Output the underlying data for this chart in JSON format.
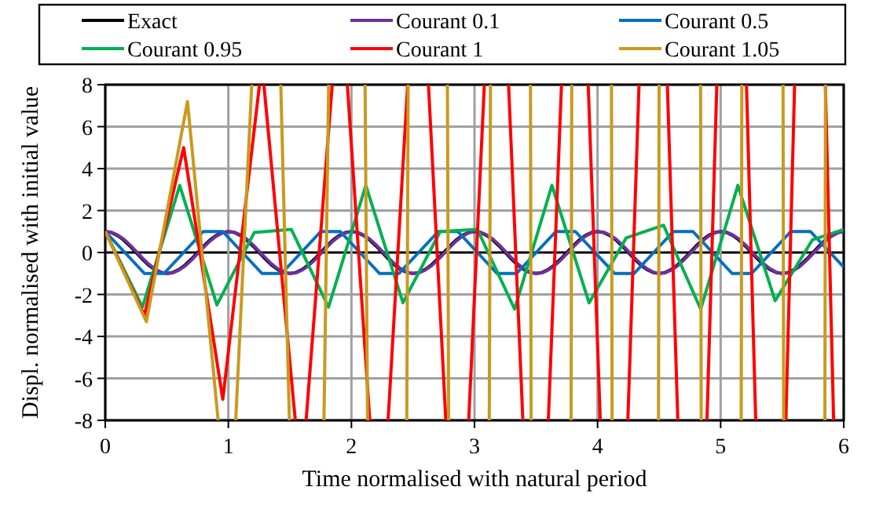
{
  "chart_data": {
    "type": "line",
    "xlabel": "Time normalised with natural period",
    "ylabel": "Displ. normalised with initial value",
    "xlim": [
      0,
      6
    ],
    "ylim": [
      -8,
      8
    ],
    "xticks": [
      0,
      1,
      2,
      3,
      4,
      5,
      6
    ],
    "yticks": [
      -8,
      -6,
      -4,
      -2,
      0,
      2,
      4,
      6,
      8
    ],
    "grid": true,
    "legend": "top",
    "x": [
      0,
      0.05,
      0.1,
      0.15,
      0.2,
      0.25,
      0.3,
      0.35,
      0.4,
      0.45,
      0.5,
      0.55,
      0.6,
      0.65,
      0.7,
      0.75,
      0.8,
      0.85,
      0.9,
      0.95,
      1,
      1.05,
      1.1,
      1.15,
      1.2,
      1.25,
      1.3,
      1.35,
      1.4,
      1.45,
      1.5,
      1.55,
      1.6,
      1.65,
      1.7,
      1.75,
      1.8,
      1.85,
      1.9,
      1.95,
      2,
      2.05,
      2.1,
      2.15,
      2.2,
      2.25,
      2.3,
      2.35,
      2.4,
      2.45,
      2.5,
      2.55,
      2.6,
      2.65,
      2.7,
      2.75,
      2.8,
      2.85,
      2.9,
      2.95,
      3,
      3.05,
      3.1,
      3.15,
      3.2,
      3.25,
      3.3,
      3.35,
      3.4,
      3.45,
      3.5,
      3.55,
      3.6,
      3.65,
      3.7,
      3.75,
      3.8,
      3.85,
      3.9,
      3.95,
      4,
      4.05,
      4.1,
      4.15,
      4.2,
      4.25,
      4.3,
      4.35,
      4.4,
      4.45,
      4.5,
      4.55,
      4.6,
      4.65,
      4.7,
      4.75,
      4.8,
      4.85,
      4.9,
      4.95,
      5,
      5.05,
      5.1,
      5.15,
      5.2,
      5.25,
      5.3,
      5.35,
      5.4,
      5.45,
      5.5,
      5.55,
      5.6,
      5.65,
      5.7,
      5.75,
      5.8,
      5.85,
      5.9,
      5.95,
      6
    ],
    "series": [
      {
        "name": "Exact",
        "color": "#000000",
        "values": [
          1,
          0.95,
          0.81,
          0.59,
          0.31,
          0,
          -0.31,
          -0.59,
          -0.81,
          -0.95,
          -1,
          -0.95,
          -0.81,
          -0.59,
          -0.31,
          0,
          0.31,
          0.59,
          0.81,
          0.95,
          1,
          0.95,
          0.81,
          0.59,
          0.31,
          0,
          -0.31,
          -0.59,
          -0.81,
          -0.95,
          -1,
          -0.95,
          -0.81,
          -0.59,
          -0.31,
          0,
          0.31,
          0.59,
          0.81,
          0.95,
          1,
          0.95,
          0.81,
          0.59,
          0.31,
          0,
          -0.31,
          -0.59,
          -0.81,
          -0.95,
          -1,
          -0.95,
          -0.81,
          -0.59,
          -0.31,
          0,
          0.31,
          0.59,
          0.81,
          0.95,
          1,
          0.95,
          0.81,
          0.59,
          0.31,
          0,
          -0.31,
          -0.59,
          -0.81,
          -0.95,
          -1,
          -0.95,
          -0.81,
          -0.59,
          -0.31,
          0,
          0.31,
          0.59,
          0.81,
          0.95,
          1,
          0.95,
          0.81,
          0.59,
          0.31,
          0,
          -0.31,
          -0.59,
          -0.81,
          -0.95,
          -1,
          -0.95,
          -0.81,
          -0.59,
          -0.31,
          0,
          0.31,
          0.59,
          0.81,
          0.95,
          1,
          0.95,
          0.81,
          0.59,
          0.31,
          0,
          -0.31,
          -0.59,
          -0.81,
          -0.95,
          -1,
          -0.95,
          -0.81,
          -0.59,
          -0.31,
          0,
          0.31,
          0.59,
          0.81,
          0.95,
          1
        ]
      },
      {
        "name": "Courant 0.1",
        "color": "#7030a0",
        "values": [
          1,
          0.97,
          0.84,
          0.64,
          0.37,
          0.06,
          -0.25,
          -0.54,
          -0.77,
          -0.93,
          -1,
          -0.97,
          -0.84,
          -0.64,
          -0.37,
          -0.06,
          0.25,
          0.54,
          0.77,
          0.93,
          1,
          0.97,
          0.84,
          0.64,
          0.37,
          0.06,
          -0.25,
          -0.54,
          -0.77,
          -0.93,
          -1,
          -0.97,
          -0.84,
          -0.64,
          -0.37,
          -0.06,
          0.25,
          0.54,
          0.77,
          0.93,
          1,
          0.97,
          0.84,
          0.64,
          0.37,
          0.06,
          -0.25,
          -0.54,
          -0.77,
          -0.93,
          -1,
          -0.97,
          -0.84,
          -0.64,
          -0.37,
          -0.06,
          0.25,
          0.54,
          0.77,
          0.93,
          1,
          0.97,
          0.84,
          0.64,
          0.37,
          0.06,
          -0.25,
          -0.54,
          -0.77,
          -0.93,
          -1,
          -0.97,
          -0.84,
          -0.64,
          -0.37,
          -0.06,
          0.25,
          0.54,
          0.77,
          0.93,
          1,
          0.97,
          0.84,
          0.64,
          0.37,
          0.06,
          -0.25,
          -0.54,
          -0.77,
          -0.93,
          -1,
          -0.97,
          -0.84,
          -0.64,
          -0.37,
          -0.06,
          0.25,
          0.54,
          0.77,
          0.93,
          1,
          0.97,
          0.84,
          0.64,
          0.37,
          0.06,
          -0.25,
          -0.54,
          -0.77,
          -0.93,
          -1,
          -0.97,
          -0.84,
          -0.64,
          -0.37,
          -0.06,
          0.25,
          0.54,
          0.77,
          0.93,
          1
        ]
      },
      {
        "name": "Courant 0.5",
        "color": "#0070c0",
        "x": [
          0,
          0.159,
          0.318,
          0.477,
          0.637,
          0.796,
          0.955,
          1.114,
          1.273,
          1.432,
          1.592,
          1.751,
          1.91,
          2.069,
          2.228,
          2.387,
          2.546,
          2.706,
          2.865,
          3.024,
          3.183,
          3.342,
          3.501,
          3.661,
          3.82,
          3.979,
          4.138,
          4.297,
          4.456,
          4.615,
          4.775,
          4.934,
          5.093,
          5.252,
          5.411,
          5.57,
          5.73,
          5.889,
          6
        ],
        "values": [
          1,
          0,
          -1,
          -1,
          0,
          1,
          1,
          0,
          -1,
          -1,
          0,
          1,
          1,
          0,
          -1,
          -1,
          0,
          1,
          1,
          0,
          -1,
          -1,
          0,
          1,
          1,
          0,
          -1,
          -1,
          0,
          1,
          1,
          0,
          -1,
          -1,
          0,
          1,
          1,
          0,
          -0.7
        ]
      },
      {
        "name": "Courant 0.95",
        "color": "#00b050",
        "x": [
          0,
          0.302,
          0.605,
          0.907,
          1.21,
          1.512,
          1.814,
          2.117,
          2.419,
          2.721,
          3.024,
          3.326,
          3.629,
          3.931,
          4.233,
          4.536,
          4.838,
          5.14,
          5.443,
          5.745,
          6
        ],
        "values": [
          1,
          -2.6,
          3.2,
          -2.5,
          0.95,
          1.1,
          -2.6,
          3.2,
          -2.4,
          1,
          1.1,
          -2.7,
          3.2,
          -2.4,
          0.7,
          1.3,
          -2.7,
          3.2,
          -2.3,
          0.6,
          1.1
        ]
      },
      {
        "name": "Courant 1",
        "color": "#ff0000",
        "x": [
          0,
          0.318,
          0.637,
          0.955,
          1.253,
          1.273,
          1.289,
          1.544,
          1.592,
          1.632,
          1.844,
          1.91,
          1.967,
          2.149,
          2.228,
          2.298,
          2.457,
          2.546,
          2.626,
          2.767,
          2.865,
          2.953,
          3.08,
          3.183,
          3.277,
          3.393,
          3.501,
          3.6,
          3.707,
          3.82,
          3.924,
          4.022,
          4.138,
          4.246,
          4.337,
          4.456,
          4.567,
          4.652,
          4.775,
          4.889,
          4.969,
          5.093,
          5.21,
          5.285,
          5.411,
          5.53,
          5.601,
          5.73,
          5.851,
          5.918
        ],
        "values": [
          1,
          -3,
          5,
          -7,
          8,
          null,
          8,
          -8,
          null,
          -8,
          8,
          null,
          8,
          -8,
          null,
          -8,
          8,
          null,
          8,
          -8,
          null,
          -8,
          8,
          null,
          8,
          -8,
          null,
          -8,
          8,
          null,
          8,
          -8,
          null,
          -8,
          8,
          null,
          8,
          -8,
          null,
          -8,
          8,
          null,
          8,
          -8,
          null,
          -8,
          8,
          null,
          8,
          -8
        ]
      },
      {
        "name": "Courant 1.05",
        "color": "#c99a1e",
        "x": [
          0,
          0.334,
          0.668,
          0.917,
          1.003,
          1.06,
          1.19,
          1.337,
          1.426,
          1.496,
          1.671,
          1.777,
          1.815,
          2.005,
          2.111,
          2.131,
          2.339,
          2.45,
          2.461,
          2.674,
          2.78,
          2.79,
          3,
          3.12,
          3.13,
          3.3,
          3.455,
          3.46,
          3.6,
          3.785,
          3.79,
          3.95,
          4.113,
          4.118,
          4.3,
          4.495,
          4.5,
          4.7,
          4.837,
          4.842,
          5,
          5.167,
          5.172,
          5.35,
          5.507,
          5.512,
          5.7,
          5.847,
          5.852
        ],
        "values": [
          1,
          -3.3,
          7.2,
          -8,
          null,
          -8,
          8,
          null,
          8,
          -8,
          null,
          -8,
          8,
          null,
          8,
          -8,
          null,
          -8,
          8,
          null,
          8,
          -8,
          null,
          -8,
          8,
          null,
          8,
          -8,
          null,
          -8,
          8,
          null,
          8,
          -8,
          null,
          -8,
          8,
          null,
          8,
          -8,
          null,
          -8,
          8,
          null,
          8,
          -8,
          null,
          -8,
          8
        ]
      }
    ]
  }
}
